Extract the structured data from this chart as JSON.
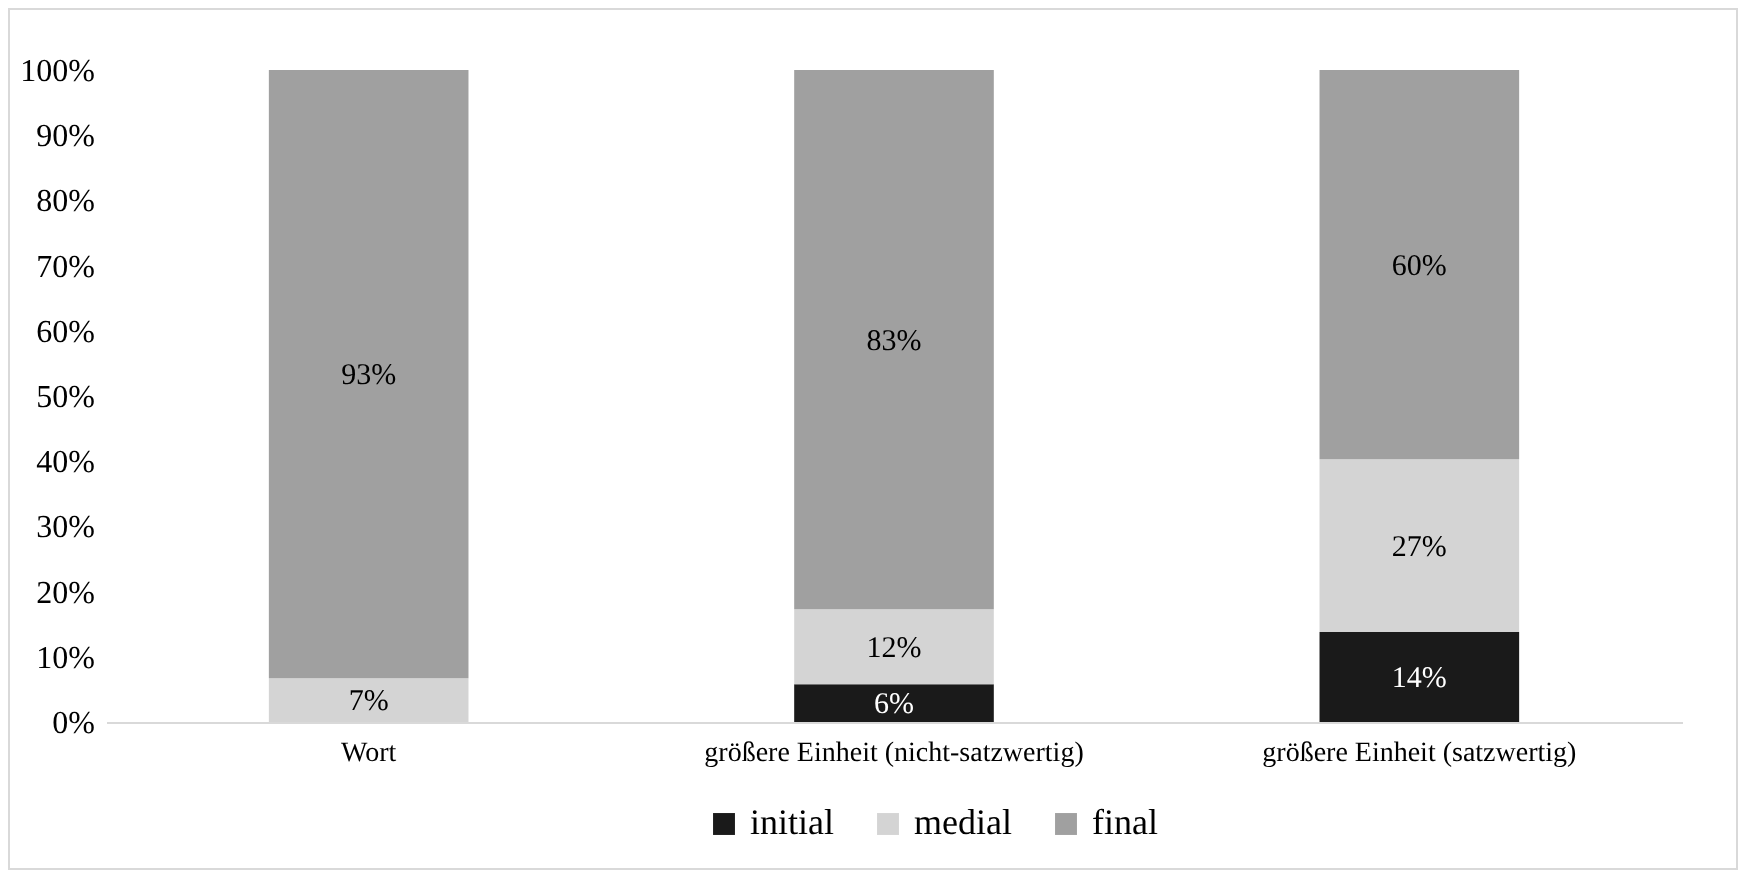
{
  "chart_data": {
    "type": "bar",
    "stacked": true,
    "categories": [
      "Wort",
      "größere Einheit (nicht-satzwertig)",
      "größere Einheit (satzwertig)"
    ],
    "series": [
      {
        "name": "initial",
        "color": "#1a1a1a",
        "values": [
          0,
          5.8,
          13.8
        ],
        "value_labels": [
          null,
          "6%",
          "14%"
        ]
      },
      {
        "name": "medial",
        "color": "#d4d4d4",
        "values": [
          6.7,
          11.5,
          26.5
        ],
        "value_labels": [
          "7%",
          "12%",
          "27%"
        ]
      },
      {
        "name": "final",
        "color": "#a0a0a0",
        "values": [
          93.3,
          82.7,
          59.7
        ],
        "value_labels": [
          "93%",
          "83%",
          "60%"
        ]
      }
    ],
    "ylim": [
      0,
      100
    ],
    "yticks": [
      {
        "value": 0,
        "label": "0%"
      },
      {
        "value": 10,
        "label": "10%"
      },
      {
        "value": 20,
        "label": "20%"
      },
      {
        "value": 30,
        "label": "30%"
      },
      {
        "value": 40,
        "label": "40%"
      },
      {
        "value": 50,
        "label": "50%"
      },
      {
        "value": 60,
        "label": "60%"
      },
      {
        "value": 70,
        "label": "70%"
      },
      {
        "value": 80,
        "label": "80%"
      },
      {
        "value": 90,
        "label": "90%"
      },
      {
        "value": 100,
        "label": "100%"
      }
    ],
    "legend": "bottom"
  }
}
